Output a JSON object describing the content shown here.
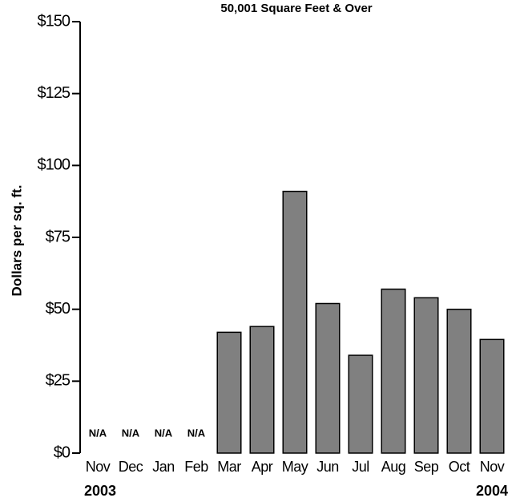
{
  "chart_data": {
    "type": "bar",
    "title": "50,001 Square Feet & Over",
    "y_label": "Dollars per sq. ft.",
    "categories": [
      "Nov",
      "Dec",
      "Jan",
      "Feb",
      "Mar",
      "Apr",
      "May",
      "Jun",
      "Jul",
      "Aug",
      "Sep",
      "Oct",
      "Nov"
    ],
    "values": [
      null,
      null,
      null,
      null,
      42,
      44,
      91,
      52,
      34,
      57,
      54,
      50,
      39.5
    ],
    "value_labels": [
      "N/A",
      "N/A",
      "N/A",
      "N/A",
      null,
      null,
      null,
      null,
      null,
      null,
      null,
      null,
      null
    ],
    "annotations": [
      "2003",
      "2004"
    ],
    "color": "#808080",
    "ylim": [
      0,
      150
    ],
    "yticks": [
      {
        "value": 0,
        "label": "$0"
      },
      {
        "value": 25,
        "label": "$25"
      },
      {
        "value": 50,
        "label": "$50"
      },
      {
        "value": 75,
        "label": "$75"
      },
      {
        "value": 100,
        "label": "$100"
      },
      {
        "value": 125,
        "label": "$125"
      },
      {
        "value": 150,
        "label": "$150"
      }
    ],
    "grid": false
  }
}
